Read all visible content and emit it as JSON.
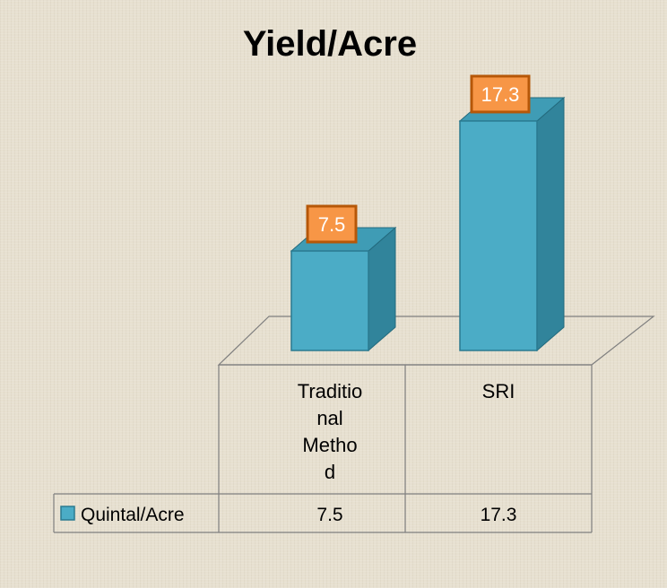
{
  "chart_data": {
    "type": "bar",
    "title": "Yield/Acre",
    "categories": [
      "Traditional Method",
      "SRI"
    ],
    "category_label_lines": [
      [
        "Traditio",
        "nal",
        "Metho",
        "d"
      ],
      [
        "SRI"
      ]
    ],
    "series": [
      {
        "name": "Quintal/Acre",
        "values": [
          7.5,
          17.3
        ]
      }
    ],
    "data_labels": [
      "7.5",
      "17.3"
    ],
    "table_values": [
      "7.5",
      "17.3"
    ],
    "ylim": [
      0,
      20
    ],
    "grid": false,
    "legend": "data-table-left",
    "colors": {
      "bar_front": "#4bacc6",
      "bar_side": "#31849b",
      "bar_top": "#3f9cb5",
      "label_bg": "#f79646",
      "label_border": "#b65708",
      "label_text": "#ffffff",
      "text": "#000000",
      "lines": "#7f7f7f"
    }
  }
}
